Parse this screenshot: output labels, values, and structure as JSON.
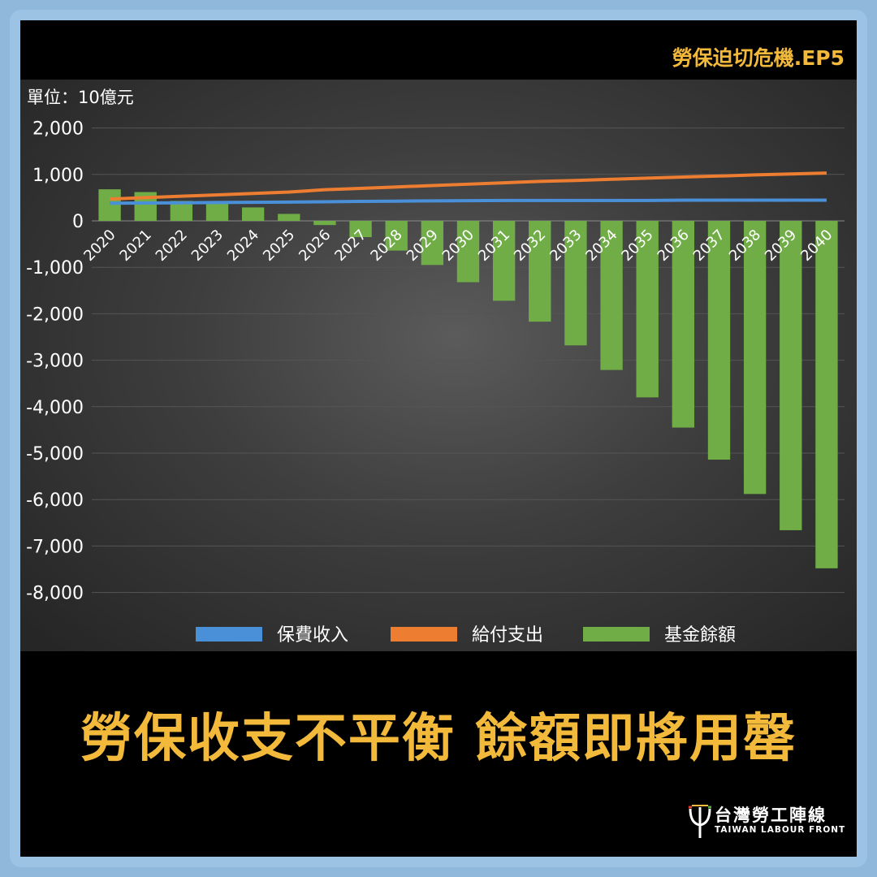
{
  "header": {
    "series_title": "勞保迫切危機.EP5"
  },
  "headline": "勞保收支不平衡 餘額即將用罄",
  "logo": {
    "name_cn": "台灣勞工陣線",
    "name_en": "TAIWAN LABOUR FRONT"
  },
  "colors": {
    "income": "#4a90d9",
    "expense": "#ed7d31",
    "balance": "#70ad47",
    "accent": "#f2b93b"
  },
  "chart_data": {
    "type": "bar",
    "unit_label": "單位：10億元",
    "categories": [
      "2020",
      "2021",
      "2022",
      "2023",
      "2024",
      "2025",
      "2026",
      "2027",
      "2028",
      "2029",
      "2030",
      "2031",
      "2032",
      "2033",
      "2034",
      "2035",
      "2036",
      "2037",
      "2038",
      "2039",
      "2040"
    ],
    "yticks": [
      "2,000",
      "1,000",
      "0",
      "-1,000",
      "-2,000",
      "-3,000",
      "-4,000",
      "-5,000",
      "-6,000",
      "-7,000",
      "-8,000"
    ],
    "ylim": [
      -8000,
      2000
    ],
    "series": [
      {
        "name": "保費收入",
        "type": "line",
        "color": "#4a90d9",
        "values": [
          380,
          385,
          390,
          395,
          400,
          405,
          410,
          420,
          425,
          430,
          435,
          440,
          440,
          440,
          440,
          440,
          445,
          445,
          445,
          445,
          445
        ]
      },
      {
        "name": "給付支出",
        "type": "line",
        "color": "#ed7d31",
        "values": [
          470,
          500,
          530,
          560,
          590,
          620,
          670,
          700,
          730,
          760,
          790,
          820,
          850,
          870,
          895,
          920,
          945,
          965,
          990,
          1010,
          1030
        ]
      },
      {
        "name": "基金餘額",
        "type": "bar",
        "color": "#70ad47",
        "values": [
          680,
          620,
          430,
          390,
          290,
          150,
          -90,
          -350,
          -640,
          -950,
          -1320,
          -1720,
          -2170,
          -2680,
          -3210,
          -3800,
          -4450,
          -5140,
          -5880,
          -6660,
          -7480
        ]
      }
    ],
    "legend_position": "bottom",
    "grid": true
  }
}
